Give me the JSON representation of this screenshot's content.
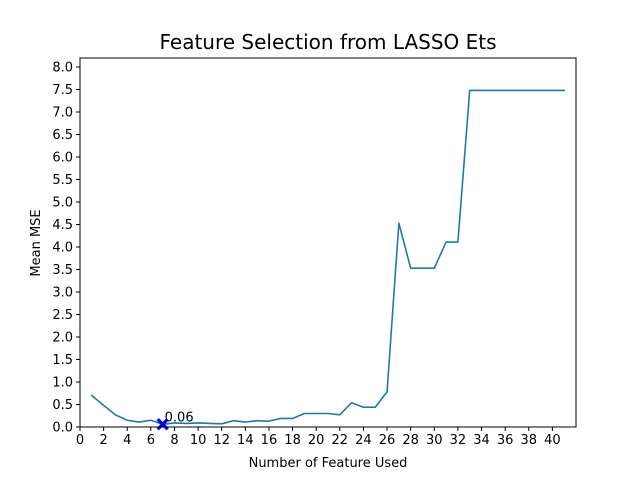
{
  "chart_data": {
    "type": "line",
    "title": "Feature Selection from LASSO Ets",
    "xlabel": "Number of Feature Used",
    "ylabel": "Mean MSE",
    "xlim": [
      0,
      42
    ],
    "ylim": [
      0,
      8.2
    ],
    "xticks": [
      0,
      2,
      4,
      6,
      8,
      10,
      12,
      14,
      16,
      18,
      20,
      22,
      24,
      26,
      28,
      30,
      32,
      34,
      36,
      38,
      40
    ],
    "yticks": [
      0.0,
      0.5,
      1.0,
      1.5,
      2.0,
      2.5,
      3.0,
      3.5,
      4.0,
      4.5,
      5.0,
      5.5,
      6.0,
      6.5,
      7.0,
      7.5,
      8.0
    ],
    "grid": false,
    "series": [
      {
        "color": "#1f77b4",
        "x": [
          1,
          2,
          3,
          4,
          5,
          6,
          7,
          8,
          9,
          10,
          11,
          12,
          13,
          14,
          15,
          16,
          17,
          18,
          19,
          20,
          21,
          22,
          23,
          24,
          25,
          26,
          27,
          28,
          29,
          30,
          31,
          32,
          33,
          34,
          35,
          36,
          37,
          38,
          39,
          40,
          41
        ],
        "y": [
          0.7,
          0.48,
          0.27,
          0.15,
          0.11,
          0.15,
          0.06,
          0.09,
          0.08,
          0.09,
          0.08,
          0.07,
          0.14,
          0.11,
          0.14,
          0.13,
          0.19,
          0.19,
          0.3,
          0.3,
          0.3,
          0.27,
          0.54,
          0.44,
          0.44,
          0.78,
          4.53,
          3.53,
          3.53,
          3.53,
          4.11,
          4.11,
          7.48,
          7.48,
          7.48,
          7.48,
          7.48,
          7.48,
          7.48,
          7.48,
          7.48
        ]
      }
    ],
    "marker": {
      "x": 7,
      "y": 0.06,
      "symbol": "x",
      "color": "#0000ff"
    },
    "annotations": [
      {
        "x": 7,
        "y": 0.06,
        "text": "0.06"
      }
    ]
  }
}
